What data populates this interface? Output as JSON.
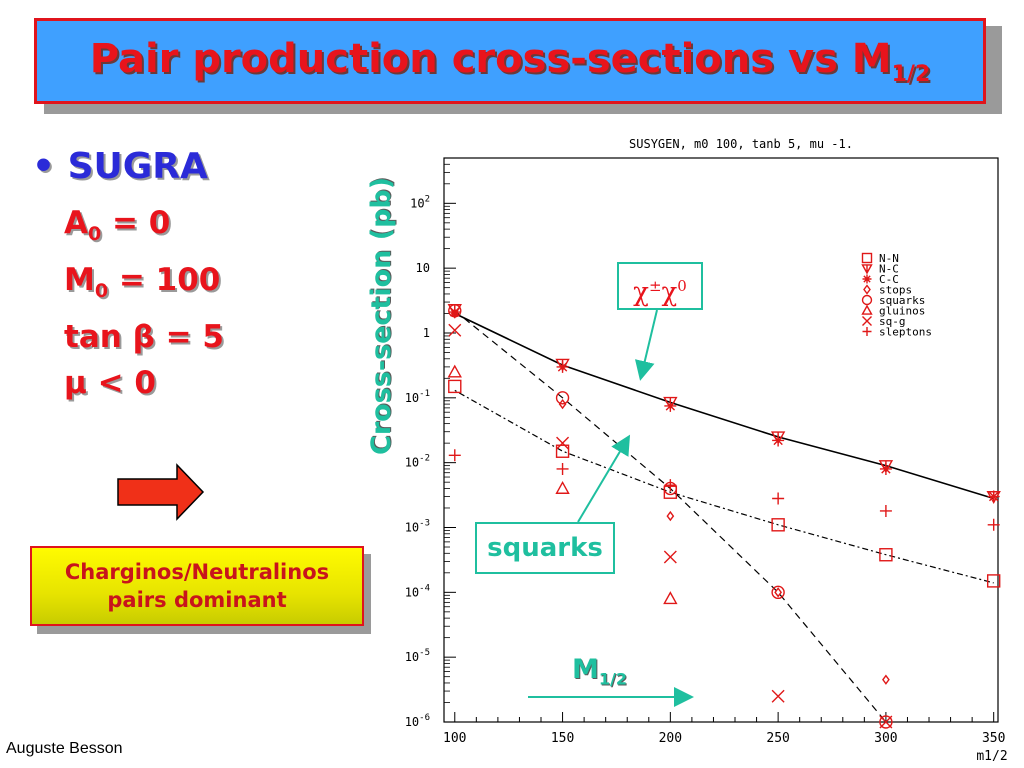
{
  "title": {
    "main": "Pair production cross-sections vs M",
    "sub": "1/2"
  },
  "sugra": {
    "bullet": "•",
    "label": "SUGRA"
  },
  "params": [
    {
      "name": "A",
      "sub": "0",
      "rest": " = 0"
    },
    {
      "name": "M",
      "sub": "0",
      "rest": " = 100"
    },
    {
      "name": "tan ",
      "sub": "",
      "rest": "β = 5"
    },
    {
      "name": "μ < 0",
      "sub": "",
      "rest": ""
    }
  ],
  "callout": {
    "line1": "Charginos/Neutralinos",
    "line2": "pairs dominant"
  },
  "author": "Auguste Besson",
  "annotations": {
    "cross_section": "Cross-section (pb)",
    "chi_base": "χ",
    "chi_sup1": "±",
    "chi_base2": "χ",
    "chi_sup2": "0",
    "squarks": "squarks",
    "m12_main": "M",
    "m12_sub": "1/2"
  },
  "colors": {
    "title_bg": "#3fa0ff",
    "accent_red": "#e8141c",
    "teal": "#1fbf9f",
    "blue": "#2b2bd8",
    "callout_yellow": "#fffb00"
  },
  "chart_data": {
    "type": "scatter",
    "title": "SUSYGEN, m0 100, tanb 5, mu -1.",
    "xlabel": "m1/2",
    "ylabel": "",
    "xlim": [
      95,
      352
    ],
    "ylim": [
      1e-06,
      500
    ],
    "yscale": "log",
    "x_ticks": [
      100,
      150,
      200,
      250,
      300,
      350
    ],
    "y_ticks": [
      {
        "v": 100,
        "label": "10",
        "sup": "2"
      },
      {
        "v": 10,
        "label": "10",
        "sup": ""
      },
      {
        "v": 1,
        "label": "1",
        "sup": ""
      },
      {
        "v": 0.1,
        "label": "10",
        "sup": "-1"
      },
      {
        "v": 0.01,
        "label": "10",
        "sup": "-2"
      },
      {
        "v": 0.001,
        "label": "10",
        "sup": "-3"
      },
      {
        "v": 0.0001,
        "label": "10",
        "sup": "-4"
      },
      {
        "v": 1e-05,
        "label": "10",
        "sup": "-5"
      },
      {
        "v": 1e-06,
        "label": "10",
        "sup": "-6"
      }
    ],
    "legend_position": "top-right",
    "series": [
      {
        "name": "N-N",
        "marker": "square",
        "x": [
          100,
          150,
          200,
          250,
          300,
          350
        ],
        "y": [
          0.15,
          0.015,
          0.0035,
          0.0011,
          0.00038,
          0.00015
        ]
      },
      {
        "name": "N-C",
        "marker": "triangle-down-cross",
        "x": [
          100,
          150,
          200,
          250,
          300,
          350
        ],
        "y": [
          2.3,
          0.33,
          0.085,
          0.025,
          0.009,
          0.003
        ]
      },
      {
        "name": "C-C",
        "marker": "star",
        "x": [
          100,
          150,
          200,
          250,
          300,
          350
        ],
        "y": [
          2.1,
          0.3,
          0.075,
          0.022,
          0.008,
          0.003
        ]
      },
      {
        "name": "stops",
        "marker": "small-diamond",
        "x": [
          100,
          150,
          200,
          250,
          300
        ],
        "y": [
          2.0,
          0.08,
          0.0015,
          0.0001,
          4.5e-06
        ]
      },
      {
        "name": "squarks",
        "marker": "circle",
        "x": [
          100,
          150,
          200,
          250,
          300
        ],
        "y": [
          2.2,
          0.1,
          0.004,
          0.0001,
          1e-06
        ]
      },
      {
        "name": "gluinos",
        "marker": "triangle",
        "x": [
          100,
          150,
          200
        ],
        "y": [
          0.25,
          0.004,
          8e-05
        ]
      },
      {
        "name": "sq-g",
        "marker": "x",
        "x": [
          100,
          150,
          200,
          250,
          300
        ],
        "y": [
          1.1,
          0.02,
          0.00035,
          2.5e-06,
          1e-06
        ]
      },
      {
        "name": "sleptons",
        "marker": "plus",
        "x": [
          100,
          150,
          200,
          250,
          300,
          350
        ],
        "y": [
          0.013,
          0.008,
          0.0045,
          0.0028,
          0.0018,
          0.0011
        ]
      }
    ],
    "curves": [
      {
        "name": "N-C",
        "style": "solid",
        "x": [
          100,
          150,
          200,
          250,
          300,
          350
        ],
        "y": [
          2.0,
          0.32,
          0.085,
          0.025,
          0.009,
          0.0028
        ]
      },
      {
        "name": "N-N",
        "style": "dotted",
        "x": [
          100,
          150,
          200,
          250,
          300,
          350
        ],
        "y": [
          0.13,
          0.015,
          0.0035,
          0.0011,
          0.00038,
          0.00014
        ]
      },
      {
        "name": "squarks",
        "style": "dashed",
        "x": [
          100,
          150,
          200,
          250,
          300
        ],
        "y": [
          2.2,
          0.1,
          0.004,
          0.0001,
          1e-06
        ]
      }
    ]
  }
}
